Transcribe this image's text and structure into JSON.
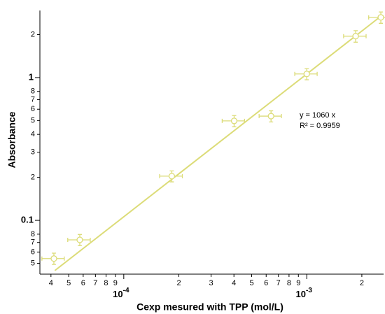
{
  "chart_data": {
    "type": "scatter",
    "x_label": "Cexp mesured with TPP (mol/L)",
    "y_label": "Absorbance",
    "annotations": [
      "y = 1060 x",
      "R² = 0.9959"
    ],
    "xscale": "log",
    "yscale": "log",
    "color": "#dcdc78",
    "x": [
      4.15e-05,
      5.75e-05,
      0.000183,
      0.000401,
      0.000638,
      0.001,
      0.00185,
      0.00254
    ],
    "values": [
      0.054,
      0.073,
      0.204,
      0.497,
      0.537,
      1.06,
      1.95,
      2.64
    ],
    "xerr": [
      5.8e-06,
      8.1e-06,
      2.6e-05,
      5.6e-05,
      8.9e-05,
      0.00014,
      0.00026,
      0.00036
    ],
    "yerr": [
      0.0049,
      0.0066,
      0.018,
      0.045,
      0.048,
      0.095,
      0.18,
      0.24
    ],
    "fit_line": {
      "x": [
        4.2e-05,
        0.00255
      ],
      "values": [
        0.0445,
        2.7
      ]
    },
    "xlim": [
      3.48e-05,
      0.00263
    ],
    "ylim": [
      0.042,
      2.95
    ],
    "xticks": [
      {
        "value": 4e-05,
        "label": "4"
      },
      {
        "value": 5e-05,
        "label": "5"
      },
      {
        "value": 6e-05,
        "label": "6"
      },
      {
        "value": 7e-05,
        "label": "7"
      },
      {
        "value": 8e-05,
        "label": "8"
      },
      {
        "value": 9e-05,
        "label": "9"
      },
      {
        "value": 0.0001,
        "label": "10",
        "label_sup": "-4"
      },
      {
        "value": 0.0002,
        "label": "2"
      },
      {
        "value": 0.0003,
        "label": "3"
      },
      {
        "value": 0.0004,
        "label": "4"
      },
      {
        "value": 0.0005,
        "label": "5"
      },
      {
        "value": 0.0006,
        "label": "6"
      },
      {
        "value": 0.0007,
        "label": "7"
      },
      {
        "value": 0.0008,
        "label": "8"
      },
      {
        "value": 0.0009,
        "label": "9"
      },
      {
        "value": 0.001,
        "label": "10",
        "label_sup": "-3"
      },
      {
        "value": 0.002,
        "label": "2"
      }
    ],
    "yticks": [
      {
        "value": 0.05,
        "label": "5"
      },
      {
        "value": 0.06,
        "label": "6"
      },
      {
        "value": 0.07,
        "label": "7"
      },
      {
        "value": 0.08,
        "label": "8"
      },
      0.1,
      {
        "value": 0.2,
        "label": "2"
      },
      {
        "value": 0.3,
        "label": "3"
      },
      {
        "value": 0.4,
        "label": "4"
      },
      {
        "value": 0.5,
        "label": "5"
      },
      {
        "value": 0.6,
        "label": "6"
      },
      {
        "value": 0.7,
        "label": "7"
      },
      {
        "value": 0.8,
        "label": "8"
      },
      1,
      2
    ]
  }
}
